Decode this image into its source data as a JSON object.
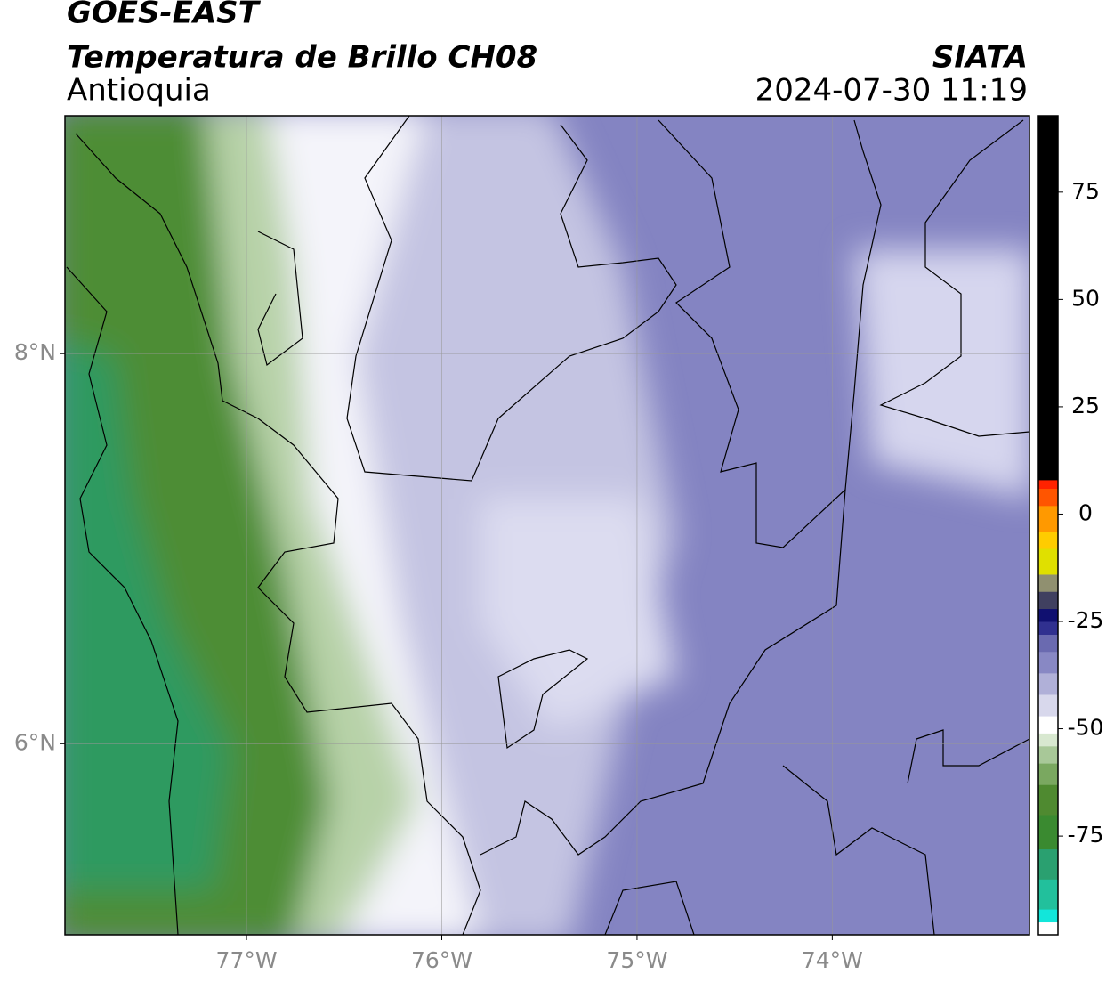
{
  "header": {
    "title": "GOES-EAST",
    "subtitle": "Temperatura de Brillo CH08",
    "region": "Antioquia",
    "source": "SIATA",
    "datetime": "2024-07-30 11:19"
  },
  "map": {
    "xlim": [
      -77.93,
      -72.99
    ],
    "ylim": [
      5.02,
      9.22
    ],
    "xticks": [
      {
        "value": -77,
        "label": "77°W"
      },
      {
        "value": -76,
        "label": "76°W"
      },
      {
        "value": -75,
        "label": "75°W"
      },
      {
        "value": -74,
        "label": "74°W"
      }
    ],
    "yticks": [
      {
        "value": 6,
        "label": "6°N"
      },
      {
        "value": 8,
        "label": "8°N"
      }
    ],
    "grid": true
  },
  "colorbar": {
    "lim": [
      -98,
      92.8
    ],
    "ticks": [
      -75,
      -50,
      -25,
      0,
      25,
      50,
      75
    ],
    "stops": [
      {
        "value": -98,
        "color": "#ffffff"
      },
      {
        "value": -95,
        "color": "#12e6da"
      },
      {
        "value": -92,
        "color": "#22c09c"
      },
      {
        "value": -85,
        "color": "#2aa070"
      },
      {
        "value": -78,
        "color": "#3a8a30"
      },
      {
        "value": -70,
        "color": "#4f8a30"
      },
      {
        "value": -63,
        "color": "#7aa860"
      },
      {
        "value": -58,
        "color": "#a8c898"
      },
      {
        "value": -54,
        "color": "#d8e8d0"
      },
      {
        "value": -51,
        "color": "#ffffff"
      },
      {
        "value": -47,
        "color": "#d8d8ec"
      },
      {
        "value": -42,
        "color": "#b0b0d8"
      },
      {
        "value": -37,
        "color": "#8888c4"
      },
      {
        "value": -32,
        "color": "#6a6ab0"
      },
      {
        "value": -28,
        "color": "#303090"
      },
      {
        "value": -25,
        "color": "#101070"
      },
      {
        "value": -22,
        "color": "#404060"
      },
      {
        "value": -18,
        "color": "#909070"
      },
      {
        "value": -14,
        "color": "#e0e000"
      },
      {
        "value": -8,
        "color": "#ffcc00"
      },
      {
        "value": -4,
        "color": "#ff9900"
      },
      {
        "value": 2,
        "color": "#ff5500"
      },
      {
        "value": 6,
        "color": "#ff2200"
      },
      {
        "value": 8,
        "color": "#000000"
      }
    ]
  }
}
